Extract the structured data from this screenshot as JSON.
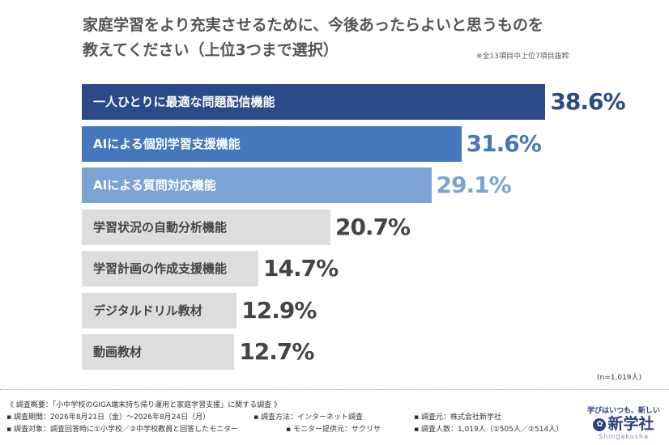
{
  "title_line1": "家庭学習をより充実させるために、今後あったらよいと思うものを",
  "title_line2": "教えてください（上位3つまで選択）",
  "note": "※全13項目中上位7項目抜粋",
  "sample_size": "(n=1,019人)",
  "chart_data": {
    "type": "bar",
    "orientation": "horizontal",
    "categories": [
      "一人ひとりに最適な問題配信機能",
      "AIによる個別学習支援機能",
      "AIによる質問対応機能",
      "学習状況の自動分析機能",
      "学習計画の作成支援機能",
      "デジタルドリル教材",
      "動画教材"
    ],
    "values": [
      38.6,
      31.6,
      29.1,
      20.7,
      14.7,
      12.9,
      12.7
    ],
    "labels": [
      "38.6%",
      "31.6%",
      "29.1%",
      "20.7%",
      "14.7%",
      "12.9%",
      "12.7%"
    ],
    "unit": "%",
    "bar_colors": [
      "#2c4a87",
      "#4477bb",
      "#7ba3d3",
      "#dddddd",
      "#dddddd",
      "#dddddd",
      "#dddddd"
    ],
    "label_colors": [
      "#ffffff",
      "#ffffff",
      "#ffffff",
      "#444444",
      "#444444",
      "#444444",
      "#444444"
    ],
    "value_colors": [
      "#2c4a87",
      "#4477bb",
      "#7ba3d3",
      "#444444",
      "#444444",
      "#444444",
      "#444444"
    ]
  },
  "footer": {
    "overview": "《 調査概要：「小中学校のGIGA端末持ち帰り運用と家庭学習支援」に関する調査 》",
    "period": "▪ 調査期間：2026年8月21日（金）〜2026年8月24日（月）",
    "method": "▪ 調査方法：インターネット調査",
    "source": "▪ 調査元：株式会社新学社",
    "target": "▪ 調査対象：調査回答時に①小学校／②中学校教員と回答したモニター",
    "provider": "▪ モニター提供元：サクリサ",
    "respondents": "▪ 調査人数：1,019人（①505人／②514人）"
  },
  "logo": {
    "tagline": "学びはいつも、新しい",
    "name": "新学社",
    "roman": "Shingakusha"
  }
}
